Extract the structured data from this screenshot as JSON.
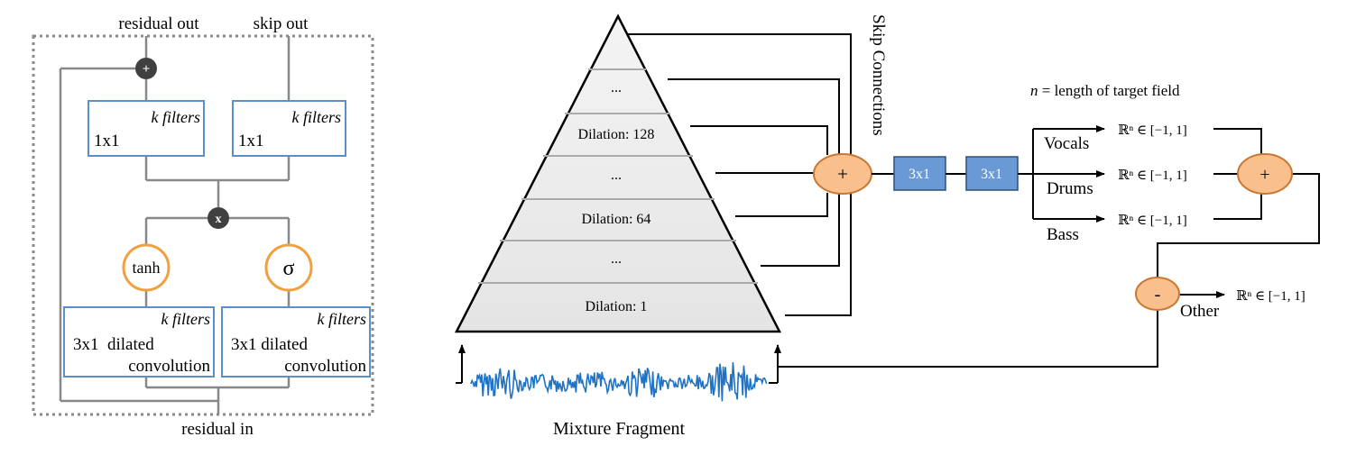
{
  "colors": {
    "box_stroke": "#5b8fc9",
    "gate_stroke": "#f0a040",
    "op_dark": "#404040",
    "op_orange_fill": "#f9c08e",
    "op_orange_stroke": "#c87832",
    "conv_fill": "#6a9ad6",
    "waveform": "#1f72c4",
    "dotted_border": "#8a8a8a",
    "pyramid_fill": "#ececec",
    "pyramid_line": "#b0b0b0"
  },
  "left": {
    "residual_out": "residual out",
    "skip_out": "skip out",
    "residual_in": "residual in",
    "plus_symbol": "+",
    "times_symbol": "x",
    "box_1x1_left": {
      "filters": "k filters",
      "label": "1x1"
    },
    "box_1x1_right": {
      "filters": "k filters",
      "label": "1x1"
    },
    "tanh_label": "tanh",
    "sigma_label": "σ",
    "box_dilated_left": {
      "filters": "k filters",
      "line1": "3x1  dilated",
      "line2": "convolution"
    },
    "box_dilated_right": {
      "filters": "k filters",
      "line1": "3x1 dilated",
      "line2": "convolution"
    }
  },
  "right": {
    "pyramid_layers": [
      "...",
      "Dilation: 128",
      "...",
      "Dilation: 64",
      "...",
      "Dilation: 1"
    ],
    "skip_connections": "Skip Connections",
    "sum_symbol": "+",
    "conv1": "3x1",
    "conv2": "3x1",
    "legend": "n = length of target field",
    "legend_n": "n",
    "legend_rest": " = length of target field",
    "vocals": "Vocals",
    "drums": "Drums",
    "bass": "Bass",
    "other": "Other",
    "output_label": "ℝⁿ ∈ [−1, 1]",
    "plus2": "+",
    "minus": "-",
    "mixture_fragment": "Mixture Fragment"
  }
}
